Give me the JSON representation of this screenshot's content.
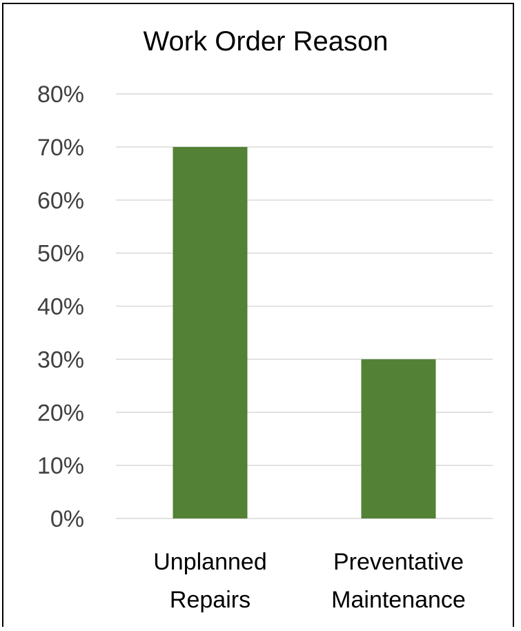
{
  "chart_data": {
    "type": "bar",
    "title": "Work Order Reason",
    "categories": [
      [
        "Unplanned",
        "Repairs"
      ],
      [
        "Preventative",
        "Maintenance"
      ]
    ],
    "values": [
      0.7,
      0.3
    ],
    "ylim": [
      0,
      0.8
    ],
    "yticks": [
      0,
      0.1,
      0.2,
      0.3,
      0.4,
      0.5,
      0.6,
      0.7,
      0.8
    ],
    "ytick_labels": [
      "0%",
      "10%",
      "20%",
      "30%",
      "40%",
      "50%",
      "60%",
      "70%",
      "80%"
    ],
    "grid": true,
    "legend": "none",
    "bar_color": "#538135",
    "gridline_color": "#d9d9d9"
  }
}
